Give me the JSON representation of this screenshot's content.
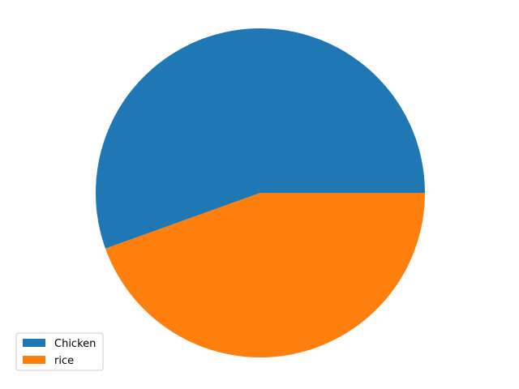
{
  "chart_data": {
    "type": "pie",
    "title": "",
    "start_angle": 0,
    "direction": "counterclockwise",
    "legend_position": "lower-left",
    "slices": [
      {
        "label": "Chicken",
        "value": 55.5,
        "color": "#1f77b4"
      },
      {
        "label": "rice",
        "value": 44.5,
        "color": "#ff7f0e"
      }
    ]
  }
}
